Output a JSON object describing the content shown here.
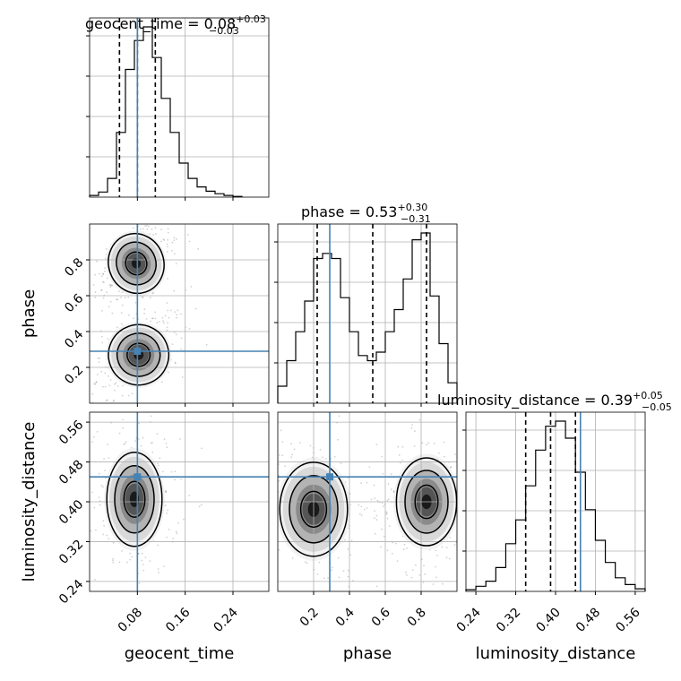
{
  "chart_data": {
    "type": "corner",
    "parameters": [
      "geocent_time",
      "phase",
      "luminosity_distance"
    ],
    "truth": {
      "geocent_time": 0.08,
      "phase": 0.29,
      "luminosity_distance": 0.45
    },
    "ranges": {
      "geocent_time": [
        0.0,
        0.3
      ],
      "phase": [
        0.0,
        1.0
      ],
      "luminosity_distance": [
        0.22,
        0.58
      ]
    },
    "ticks": {
      "geocent_time": [
        0.08,
        0.16,
        0.24
      ],
      "phase": [
        0.2,
        0.4,
        0.6,
        0.8
      ],
      "luminosity_distance": [
        0.24,
        0.32,
        0.4,
        0.48,
        0.56
      ]
    },
    "tick_labels": {
      "geocent_time": [
        "0.08",
        "0.16",
        "0.24"
      ],
      "phase": [
        "0.2",
        "0.4",
        "0.6",
        "0.8"
      ],
      "luminosity_distance": [
        "0.24",
        "0.32",
        "0.40",
        "0.48",
        "0.56"
      ]
    },
    "titles": [
      {
        "param": "geocent_time",
        "prefix": "geocent_time = 0.08",
        "plus": "+0.03",
        "minus": "−0.03"
      },
      {
        "param": "phase",
        "prefix": "phase = 0.53",
        "plus": "+0.30",
        "minus": "−0.31"
      },
      {
        "param": "luminosity_distance",
        "prefix": "luminosity_distance = 0.39",
        "plus": "+0.05",
        "minus": "−0.05"
      }
    ],
    "quantiles": {
      "geocent_time": [
        0.05,
        0.08,
        0.11
      ],
      "phase": [
        0.22,
        0.53,
        0.83
      ],
      "luminosity_distance": [
        0.34,
        0.39,
        0.44
      ]
    },
    "hist": {
      "geocent_time": {
        "edges": [
          0.0,
          0.015,
          0.03,
          0.045,
          0.06,
          0.075,
          0.09,
          0.105,
          0.12,
          0.135,
          0.15,
          0.165,
          0.18,
          0.195,
          0.21,
          0.225,
          0.24,
          0.255
        ],
        "counts": [
          0.01,
          0.03,
          0.11,
          0.38,
          0.75,
          0.92,
          1.0,
          0.82,
          0.58,
          0.38,
          0.2,
          0.11,
          0.06,
          0.035,
          0.02,
          0.01,
          0.004
        ]
      },
      "phase": {
        "edges": [
          0.0,
          0.05,
          0.1,
          0.15,
          0.2,
          0.25,
          0.3,
          0.35,
          0.4,
          0.45,
          0.5,
          0.55,
          0.6,
          0.65,
          0.7,
          0.75,
          0.8,
          0.85,
          0.9,
          0.95,
          1.0
        ],
        "counts": [
          0.1,
          0.25,
          0.42,
          0.6,
          0.85,
          0.88,
          0.85,
          0.62,
          0.42,
          0.28,
          0.25,
          0.3,
          0.42,
          0.55,
          0.73,
          0.96,
          1.0,
          0.63,
          0.35,
          0.12
        ]
      },
      "luminosity_distance": {
        "edges": [
          0.22,
          0.24,
          0.26,
          0.28,
          0.3,
          0.32,
          0.34,
          0.36,
          0.38,
          0.4,
          0.42,
          0.44,
          0.46,
          0.48,
          0.5,
          0.52,
          0.54,
          0.56,
          0.58
        ],
        "counts": [
          0.01,
          0.03,
          0.06,
          0.14,
          0.28,
          0.42,
          0.62,
          0.83,
          0.97,
          1.0,
          0.9,
          0.7,
          0.48,
          0.3,
          0.17,
          0.08,
          0.04,
          0.015
        ]
      }
    },
    "blobs": [
      {
        "x": "geocent_time",
        "y": "phase",
        "cx": 0.078,
        "cy": 0.78,
        "sx": 0.022,
        "sy": 0.08,
        "rho": 0.45
      },
      {
        "x": "geocent_time",
        "y": "phase",
        "cx": 0.082,
        "cy": 0.27,
        "sx": 0.024,
        "sy": 0.08,
        "rho": 0.5
      },
      {
        "x": "geocent_time",
        "y": "luminosity_distance",
        "cx": 0.075,
        "cy": 0.405,
        "sx": 0.022,
        "sy": 0.045,
        "rho": 0.0
      },
      {
        "x": "phase",
        "y": "luminosity_distance",
        "cx": 0.2,
        "cy": 0.385,
        "sx": 0.09,
        "sy": 0.045,
        "rho": 0.0
      },
      {
        "x": "phase",
        "y": "luminosity_distance",
        "cx": 0.83,
        "cy": 0.4,
        "sx": 0.08,
        "sy": 0.042,
        "rho": 0.0
      }
    ]
  },
  "colors": {
    "truth": "#4682b4",
    "contour": "#000000",
    "grid": "#b0b0b0",
    "points": "#000000"
  }
}
